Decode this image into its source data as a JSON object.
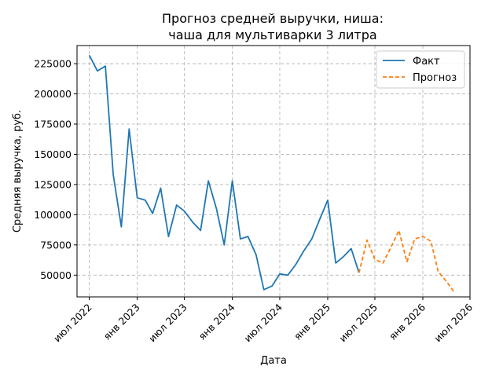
{
  "chart_data": {
    "type": "line",
    "title": [
      "Прогноз средней выручки, ниша:",
      "чаша для мультиварки 3 литра"
    ],
    "xlabel": "Дата",
    "ylabel": "Средняя выручка, руб.",
    "x_ticks": [
      {
        "date": "2022-07-01",
        "label": "июл 2022"
      },
      {
        "date": "2023-01-01",
        "label": "янв 2023"
      },
      {
        "date": "2023-07-01",
        "label": "июл 2023"
      },
      {
        "date": "2024-01-01",
        "label": "янв 2024"
      },
      {
        "date": "2024-07-01",
        "label": "июл 2024"
      },
      {
        "date": "2025-01-01",
        "label": "янв 2025"
      },
      {
        "date": "2025-07-01",
        "label": "июл 2025"
      },
      {
        "date": "2026-01-01",
        "label": "янв 2026"
      },
      {
        "date": "2026-07-01",
        "label": "июл 2026"
      }
    ],
    "y_ticks": [
      50000,
      75000,
      100000,
      125000,
      150000,
      175000,
      200000,
      225000
    ],
    "xlim": [
      "2022-05-15",
      "2026-07-01"
    ],
    "ylim": [
      32000,
      240000
    ],
    "grid": true,
    "legend_position": "top-right",
    "series": [
      {
        "name": "Факт",
        "color": "#1f77b4",
        "style": "solid",
        "points": [
          [
            "2022-07-01",
            232000
          ],
          [
            "2022-08-01",
            219000
          ],
          [
            "2022-09-01",
            223000
          ],
          [
            "2022-10-01",
            133000
          ],
          [
            "2022-11-01",
            90000
          ],
          [
            "2022-12-01",
            171000
          ],
          [
            "2023-01-01",
            114000
          ],
          [
            "2023-02-01",
            112000
          ],
          [
            "2023-03-01",
            101000
          ],
          [
            "2023-04-01",
            122000
          ],
          [
            "2023-05-01",
            82000
          ],
          [
            "2023-06-01",
            108000
          ],
          [
            "2023-07-01",
            103000
          ],
          [
            "2023-08-01",
            94000
          ],
          [
            "2023-09-01",
            87000
          ],
          [
            "2023-10-01",
            128000
          ],
          [
            "2023-11-01",
            105000
          ],
          [
            "2023-12-01",
            75000
          ],
          [
            "2024-01-01",
            128000
          ],
          [
            "2024-02-01",
            80000
          ],
          [
            "2024-03-01",
            82000
          ],
          [
            "2024-04-01",
            67000
          ],
          [
            "2024-05-01",
            38000
          ],
          [
            "2024-06-01",
            41000
          ],
          [
            "2024-07-01",
            51000
          ],
          [
            "2024-08-01",
            50000
          ],
          [
            "2024-09-01",
            59000
          ],
          [
            "2024-10-01",
            70000
          ],
          [
            "2024-11-01",
            80000
          ],
          [
            "2024-12-01",
            96000
          ],
          [
            "2025-01-01",
            112000
          ],
          [
            "2025-02-01",
            60000
          ],
          [
            "2025-03-01",
            65000
          ],
          [
            "2025-04-01",
            72000
          ],
          [
            "2025-05-01",
            52000
          ]
        ]
      },
      {
        "name": "Прогноз",
        "color": "#ff7f0e",
        "style": "dashed",
        "points": [
          [
            "2025-05-01",
            52000
          ],
          [
            "2025-06-01",
            79000
          ],
          [
            "2025-07-01",
            63000
          ],
          [
            "2025-08-01",
            60000
          ],
          [
            "2025-09-01",
            73000
          ],
          [
            "2025-10-01",
            87000
          ],
          [
            "2025-11-01",
            61000
          ],
          [
            "2025-12-01",
            80000
          ],
          [
            "2026-01-01",
            82000
          ],
          [
            "2026-02-01",
            78000
          ],
          [
            "2026-03-01",
            53000
          ],
          [
            "2026-04-01",
            45000
          ],
          [
            "2026-05-01",
            36000
          ]
        ]
      }
    ]
  }
}
